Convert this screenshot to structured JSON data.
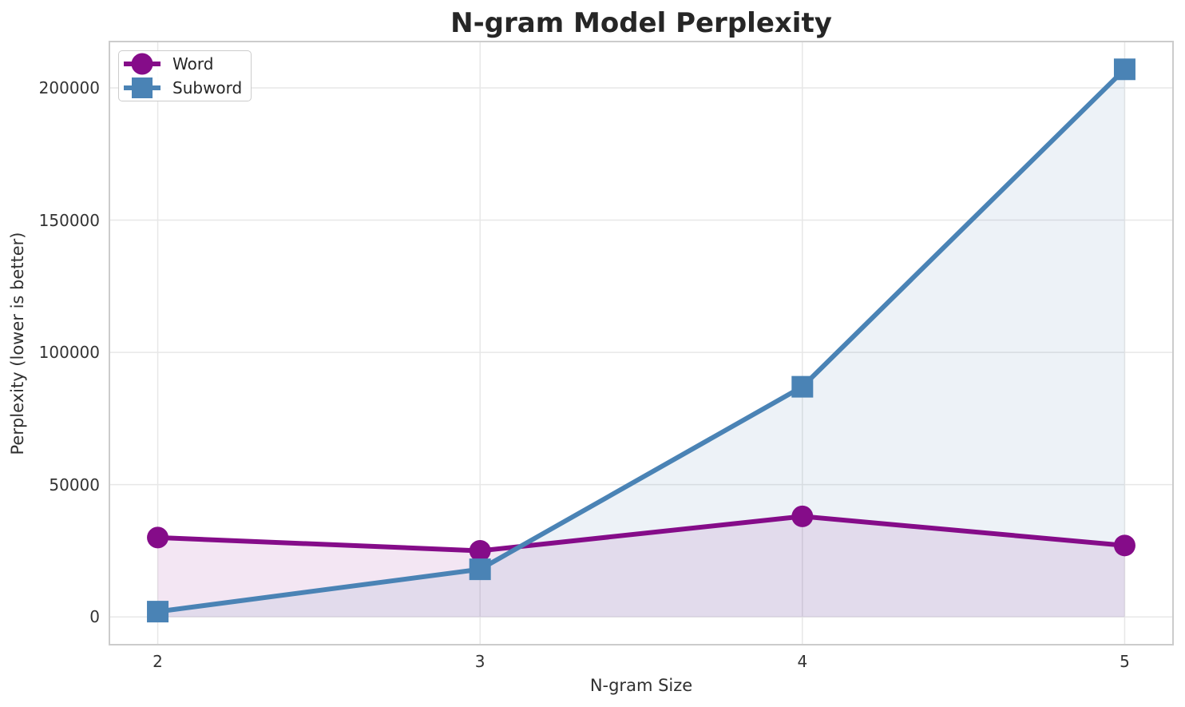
{
  "chart_data": {
    "type": "line",
    "title": "N-gram Model Perplexity",
    "xlabel": "N-gram Size",
    "ylabel": "Perplexity (lower is better)",
    "x": [
      2,
      3,
      4,
      5
    ],
    "series": [
      {
        "name": "Word",
        "color": "#850C89",
        "marker": "circle",
        "values": [
          30000,
          25000,
          38000,
          27000
        ]
      },
      {
        "name": "Subword",
        "color": "#4A83B5",
        "marker": "square",
        "values": [
          2000,
          18000,
          87000,
          207000
        ]
      }
    ],
    "xticks": [
      "2",
      "3",
      "4",
      "5"
    ],
    "xtick_values": [
      2,
      3,
      4,
      5
    ],
    "yticks": [
      "0",
      "50000",
      "100000",
      "150000",
      "200000"
    ],
    "ytick_values": [
      0,
      50000,
      100000,
      150000,
      200000
    ],
    "xlim": [
      1.85,
      5.15
    ],
    "ylim": [
      -10500,
      217500
    ],
    "grid": true,
    "grid_color": "#e7e7e7",
    "frame_color": "#cccccc",
    "area_fill": true,
    "fill_alpha": 0.1,
    "fill_baseline": 0,
    "line_width": 6,
    "marker_size": 27,
    "legend_position": "upper left"
  }
}
